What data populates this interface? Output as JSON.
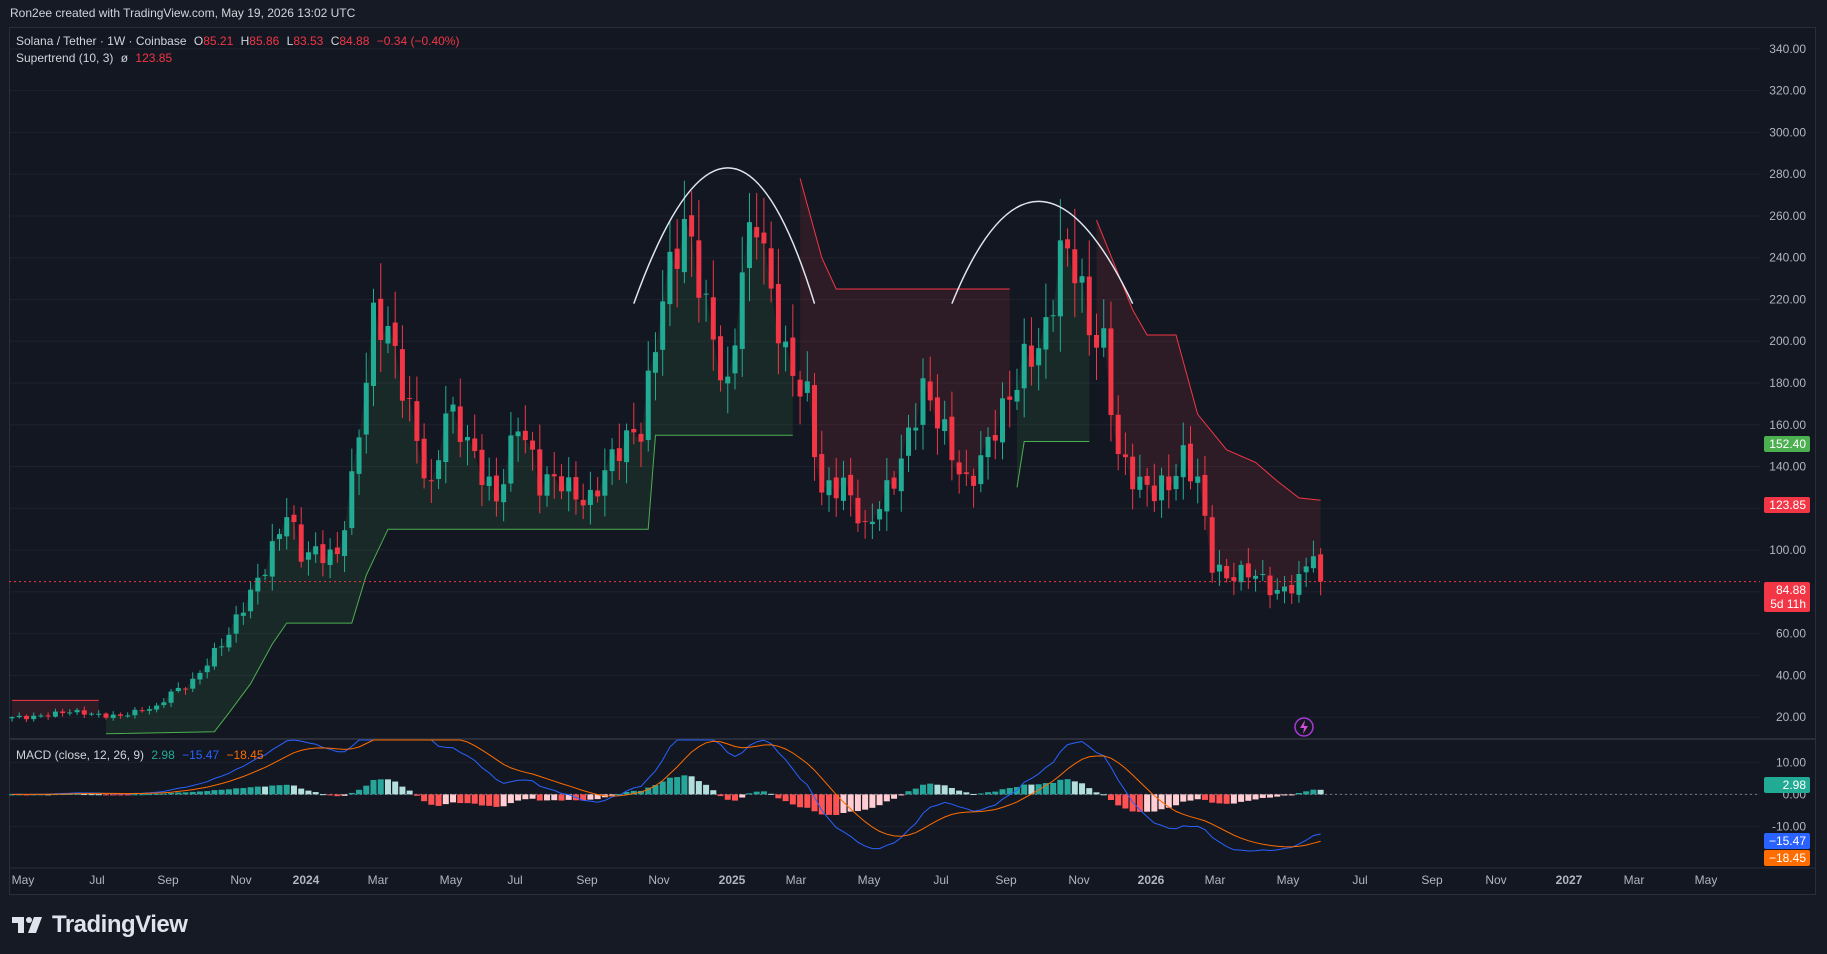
{
  "caption": "Ron2ee created with TradingView.com, May 19, 2026 13:02 UTC",
  "legend": {
    "symbol": "Solana / Tether · 1W · Coinbase",
    "o_label": "O",
    "o_value": "85.21",
    "h_label": "H",
    "h_value": "85.86",
    "l_label": "L",
    "l_value": "83.53",
    "c_label": "C",
    "c_value": "84.88",
    "change": "−0.34 (−0.40%)",
    "supertrend_label": "Supertrend (10, 3)",
    "supertrend_glyph": "ø",
    "supertrend_value": "123.85",
    "macd_label": "MACD (close, 12, 26, 9)",
    "macd_hist": "2.98",
    "macd_line": "−15.47",
    "macd_signal": "−18.45"
  },
  "price_tags": {
    "level_1": "152.40",
    "supertrend": "123.85",
    "last_price": "84.88",
    "countdown": "5d 11h",
    "macd_hist": "2.98",
    "macd_line": "−15.47",
    "macd_signal": "−18.45"
  },
  "brand": "TradingView",
  "colors": {
    "up": "#22ab94",
    "down": "#f23645",
    "macd": "#2962ff",
    "signal": "#ff6d00",
    "background": "#131722"
  },
  "chart_data": {
    "type": "candlestick",
    "price_axis": {
      "ticks": [
        "20.00",
        "40.00",
        "60.00",
        "80.00",
        "100.00",
        "120.00",
        "140.00",
        "160.00",
        "180.00",
        "200.00",
        "220.00",
        "240.00",
        "260.00",
        "280.00",
        "300.00",
        "320.00",
        "340.00"
      ],
      "range": [
        10,
        350
      ]
    },
    "macd_axis": {
      "ticks": [
        "10.00",
        "0.00",
        "-10.00"
      ],
      "range": [
        -23,
        17
      ]
    },
    "time_axis": [
      "May",
      "Jul",
      "Sep",
      "Nov",
      "2024",
      "Mar",
      "May",
      "Jul",
      "Sep",
      "Nov",
      "2025",
      "Mar",
      "May",
      "Jul",
      "Sep",
      "Nov",
      "2026",
      "Mar",
      "May",
      "Jul",
      "Sep",
      "Nov",
      "2027",
      "Mar",
      "May"
    ],
    "time_axis_bold": [
      "2024",
      "2025",
      "2026",
      "2027"
    ],
    "price_series": {
      "name": "SOL/USDT weekly",
      "anchor_points": [
        [
          0,
          20
        ],
        [
          8,
          22
        ],
        [
          15,
          21
        ],
        [
          20,
          24
        ],
        [
          22,
          32
        ],
        [
          25,
          38
        ],
        [
          30,
          58
        ],
        [
          35,
          95
        ],
        [
          38,
          118
        ],
        [
          40,
          95
        ],
        [
          45,
          100
        ],
        [
          47,
          135
        ],
        [
          50,
          205
        ],
        [
          52,
          200
        ],
        [
          55,
          170
        ],
        [
          58,
          130
        ],
        [
          60,
          165
        ],
        [
          63,
          148
        ],
        [
          67,
          128
        ],
        [
          70,
          162
        ],
        [
          73,
          128
        ],
        [
          76,
          135
        ],
        [
          80,
          125
        ],
        [
          84,
          145
        ],
        [
          87,
          160
        ],
        [
          90,
          228
        ],
        [
          93,
          250
        ],
        [
          96,
          212
        ],
        [
          99,
          180
        ],
        [
          101,
          240
        ],
        [
          103,
          258
        ],
        [
          105,
          215
        ],
        [
          107,
          190
        ],
        [
          110,
          178
        ],
        [
          112,
          130
        ],
        [
          115,
          128
        ],
        [
          118,
          108
        ],
        [
          120,
          125
        ],
        [
          123,
          145
        ],
        [
          126,
          172
        ],
        [
          129,
          155
        ],
        [
          132,
          135
        ],
        [
          135,
          150
        ],
        [
          138,
          168
        ],
        [
          140,
          190
        ],
        [
          143,
          210
        ],
        [
          145,
          245
        ],
        [
          147,
          232
        ],
        [
          149,
          200
        ],
        [
          151,
          198
        ],
        [
          153,
          150
        ],
        [
          156,
          132
        ],
        [
          158,
          125
        ],
        [
          160,
          128
        ],
        [
          162,
          145
        ],
        [
          164,
          138
        ],
        [
          166,
          95
        ],
        [
          168,
          85
        ],
        [
          172,
          88
        ],
        [
          175,
          82
        ],
        [
          178,
          85
        ],
        [
          180,
          97
        ],
        [
          181,
          85
        ]
      ]
    },
    "supertrend": {
      "name": "Supertrend (10, 3)",
      "segments": [
        {
          "trend": "down",
          "points": [
            [
              0,
              28
            ],
            [
              12,
              28
            ]
          ]
        },
        {
          "trend": "up",
          "points": [
            [
              13,
              12
            ],
            [
              28,
              13
            ],
            [
              30,
              22
            ],
            [
              33,
              36
            ],
            [
              36,
              55
            ],
            [
              38,
              65
            ],
            [
              41,
              65
            ],
            [
              47,
              65
            ],
            [
              49,
              88
            ],
            [
              52,
              110
            ],
            [
              88,
              110
            ],
            [
              89,
              155
            ],
            [
              108,
              155
            ]
          ]
        },
        {
          "trend": "down",
          "points": [
            [
              109,
              278
            ],
            [
              112,
              240
            ],
            [
              114,
              225
            ],
            [
              138,
              225
            ]
          ]
        },
        {
          "trend": "up",
          "points": [
            [
              139,
              130
            ],
            [
              140,
              152
            ],
            [
              149,
              152
            ]
          ]
        },
        {
          "trend": "down",
          "points": [
            [
              150,
              258
            ],
            [
              155,
              215
            ],
            [
              157,
              203
            ],
            [
              161,
              203
            ],
            [
              164,
              165
            ],
            [
              168,
              148
            ],
            [
              172,
              142
            ],
            [
              175,
              133
            ],
            [
              178,
              125
            ],
            [
              181,
              123.85
            ]
          ]
        }
      ]
    },
    "annotations": [
      {
        "type": "arc",
        "from": [
          86,
          218
        ],
        "peak": [
          99,
          283
        ],
        "to": [
          111,
          218
        ]
      },
      {
        "type": "arc",
        "from": [
          130,
          218
        ],
        "peak": [
          142,
          267
        ],
        "to": [
          155,
          218
        ]
      }
    ],
    "macd": {
      "histogram": "computed from series",
      "last_hist": 2.98,
      "last_macd": -15.47,
      "last_signal": -18.45
    }
  }
}
